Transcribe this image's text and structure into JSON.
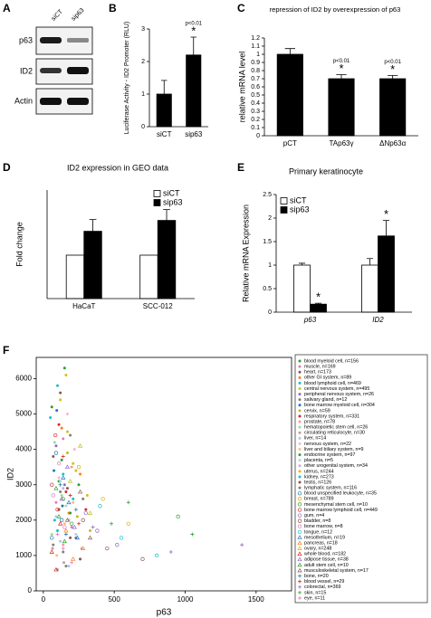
{
  "blot": {
    "panel_label": "A",
    "lanes": [
      "siCT",
      "sip63"
    ],
    "rows": [
      "p63",
      "ID2",
      "Actin"
    ]
  },
  "chart_data": [
    {
      "type": "bar",
      "panel_label": "B",
      "y_label": "Luciferase Activity - ID2 Promoter (RLU)",
      "categories": [
        "siCT",
        "sip63"
      ],
      "series": [
        {
          "color": "#000000",
          "values": [
            1.0,
            2.2
          ],
          "errors": [
            0.42,
            0.55
          ],
          "annotations": [
            null,
            "*"
          ],
          "notes": [
            null,
            "p<0.01"
          ]
        }
      ],
      "ylim": [
        0,
        3
      ],
      "yticks": [
        0,
        1,
        2,
        3
      ]
    },
    {
      "type": "bar",
      "panel_label": "C",
      "title": "repression of ID2 by overexpression of p63",
      "y_label": "relative mRNA level",
      "categories": [
        "pCT",
        "TAp63γ",
        "ΔNp63α"
      ],
      "series": [
        {
          "color": "#000000",
          "values": [
            1.0,
            0.7,
            0.7
          ],
          "errors": [
            0.07,
            0.05,
            0.04
          ],
          "annotations": [
            null,
            "*",
            "*"
          ],
          "notes": [
            null,
            "p<0.01",
            "p<0.01"
          ]
        }
      ],
      "ylim": [
        0,
        1.2
      ],
      "yticks": [
        0,
        0.1,
        0.2,
        0.3,
        0.4,
        0.5,
        0.6,
        0.7,
        0.8,
        0.9,
        1,
        1.1,
        1.2
      ]
    },
    {
      "type": "bar",
      "panel_label": "D",
      "title": "ID2 expression in GEO data",
      "y_label": "Fold change",
      "categories": [
        "HaCaT",
        "SCC-012"
      ],
      "series": [
        {
          "name": "siCT",
          "color": "#ffffff",
          "values": [
            1,
            1
          ]
        },
        {
          "name": "sip63",
          "color": "#000000",
          "values": [
            1.55,
            1.8
          ],
          "errors": [
            0.27,
            0.25
          ]
        }
      ],
      "ylim": [
        0,
        2.5
      ]
    },
    {
      "type": "bar",
      "panel_label": "E",
      "title": "Primary keratinocyte",
      "y_label": "Relative mRNA Expression",
      "categories": [
        "p63",
        "ID2"
      ],
      "category_style": "italic",
      "series": [
        {
          "name": "siCT",
          "color": "#ffffff",
          "values": [
            1.0,
            1.0
          ],
          "errors": [
            0.04,
            0.14
          ]
        },
        {
          "name": "sip63",
          "color": "#000000",
          "values": [
            0.17,
            1.62
          ],
          "errors": [
            0.02,
            0.33
          ],
          "annotations": [
            "*",
            "*"
          ]
        }
      ],
      "ylim": [
        0,
        2.5
      ],
      "yticks": [
        0,
        0.5,
        1,
        1.5,
        2,
        2.5
      ]
    },
    {
      "type": "scatter",
      "panel_label": "F",
      "x_label": "p63",
      "y_label": "ID2",
      "xlim": [
        -50,
        1750
      ],
      "xticks": [
        0,
        500,
        1000,
        1500
      ],
      "ylim": [
        0,
        6600
      ],
      "yticks": [
        0,
        1000,
        2000,
        3000,
        4000,
        5000,
        6000
      ],
      "series": [
        {
          "name": "blood myeloid cell, n=156",
          "color": "#2ca02c",
          "marker": "dot",
          "x": [
            60,
            110,
            150
          ],
          "y": [
            5200,
            3100,
            6300
          ]
        },
        {
          "name": "muscle, n=169",
          "color": "#e377c2",
          "marker": "dot",
          "x": [
            90,
            140,
            200
          ],
          "y": [
            2500,
            4300,
            1800
          ]
        },
        {
          "name": "heart, n=173",
          "color": "#8c564b",
          "marker": "dot",
          "x": [
            70,
            170,
            120
          ],
          "y": [
            3800,
            2900,
            5600
          ]
        },
        {
          "name": "other GI system, n=89",
          "color": "#ff7f0e",
          "marker": "dot",
          "x": [
            130,
            260,
            180
          ],
          "y": [
            4600,
            3300,
            2200
          ]
        },
        {
          "name": "blood lymphoid cell, n=469",
          "color": "#17becf",
          "marker": "dot",
          "x": [
            50,
            80,
            100
          ],
          "y": [
            4900,
            2000,
            5800
          ]
        },
        {
          "name": "central nervous system, n=495",
          "color": "#d4c400",
          "marker": "dot",
          "x": [
            120,
            160,
            210
          ],
          "y": [
            5400,
            6100,
            3600
          ]
        },
        {
          "name": "peripheral nervous system, n=26",
          "color": "#9467bd",
          "marker": "dot",
          "x": [
            150,
            230,
            90
          ],
          "y": [
            3000,
            1500,
            4100
          ]
        },
        {
          "name": "salivary gland, n=12",
          "color": "#7f7f7f",
          "marker": "dot",
          "x": [
            280,
            140,
            190
          ],
          "y": [
            2600,
            1100,
            4400
          ]
        },
        {
          "name": "bone marrow myeloid cell, n=304",
          "color": "#1f77b4",
          "marker": "dot",
          "x": [
            75,
            95,
            135
          ],
          "y": [
            3400,
            5100,
            2400
          ]
        },
        {
          "name": "cervix, n=59",
          "color": "#bcbd22",
          "marker": "dot",
          "x": [
            240,
            330,
            170
          ],
          "y": [
            2100,
            1700,
            3900
          ]
        },
        {
          "name": "respiratory system, n=331",
          "color": "#d62728",
          "marker": "dot",
          "x": [
            160,
            300,
            110
          ],
          "y": [
            2800,
            2300,
            4700
          ]
        },
        {
          "name": "prostate, n=78",
          "color": "#ff9896",
          "marker": "dot",
          "x": [
            200,
            140,
            260
          ],
          "y": [
            3500,
            1300,
            900
          ]
        },
        {
          "name": "hematopoietic stem cell, n=26",
          "color": "#98df8a",
          "marker": "dot",
          "x": [
            80,
            130,
            60
          ],
          "y": [
            4200,
            2700,
            1600
          ]
        },
        {
          "name": "circulating reticulocyte, n=30",
          "color": "#c49c94",
          "marker": "dot",
          "x": [
            100,
            65,
            145
          ],
          "y": [
            600,
            1200,
            800
          ]
        },
        {
          "name": "liver, n=14",
          "color": "#aec7e8",
          "marker": "dot",
          "x": [
            120,
            180,
            90
          ],
          "y": [
            1400,
            700,
            2100
          ]
        },
        {
          "name": "nervous system, n=22",
          "color": "#f7b6d2",
          "marker": "dot",
          "x": [
            170,
            220,
            110
          ],
          "y": [
            5000,
            4000,
            3200
          ]
        },
        {
          "name": "liver and biliary system, n=9",
          "color": "#ffbb78",
          "marker": "dot",
          "x": [
            150,
            95,
            210
          ],
          "y": [
            1900,
            1000,
            2500
          ]
        },
        {
          "name": "endocrine system, n=97",
          "color": "#2ca02c",
          "marker": "dot",
          "x": [
            190,
            250,
            130
          ],
          "y": [
            2200,
            3000,
            3700
          ]
        },
        {
          "name": "placenta, n=5",
          "color": "#9edae5",
          "marker": "dot",
          "x": [
            230,
            160,
            120
          ],
          "y": [
            1600,
            2400,
            3100
          ]
        },
        {
          "name": "other urogenital system, n=34",
          "color": "#c5b0d5",
          "marker": "dot",
          "x": [
            180,
            270,
            140
          ],
          "y": [
            2000,
            1200,
            2900
          ]
        },
        {
          "name": "uterus, n=244",
          "color": "#e6b800",
          "marker": "dot",
          "x": [
            170,
            310,
            230
          ],
          "y": [
            4500,
            2700,
            3400
          ]
        },
        {
          "name": "kidney, n=273",
          "color": "#17becf",
          "marker": "dot",
          "x": [
            140,
            210,
            100
          ],
          "y": [
            3300,
            2600,
            1700
          ]
        },
        {
          "name": "testis, n=126",
          "color": "#8c564b",
          "marker": "dot",
          "x": [
            110,
            190,
            260
          ],
          "y": [
            2300,
            1500,
            900
          ]
        },
        {
          "name": "lymphatic system, n=116",
          "color": "#7f7f7f",
          "marker": "dot",
          "x": [
            70,
            120,
            160
          ],
          "y": [
            1300,
            2800,
            700
          ]
        },
        {
          "name": "blood unspecified leukocyte, n=35",
          "color": "#1f77b4",
          "marker": "circle",
          "x": [
            90,
            130,
            60
          ],
          "y": [
            3900,
            2000,
            1500
          ]
        },
        {
          "name": "breast, n=789",
          "color": "#e6a800",
          "marker": "circle",
          "x": [
            250,
            420,
            600
          ],
          "y": [
            3500,
            2600,
            1900
          ]
        },
        {
          "name": "mesenchymal stem cell, n=10",
          "color": "#2ca02c",
          "marker": "circle",
          "x": [
            200,
            140,
            950
          ],
          "y": [
            1900,
            2600,
            2100
          ]
        },
        {
          "name": "bone marrow lymphoid cell, n=449",
          "color": "#d62728",
          "marker": "circle",
          "x": [
            60,
            100,
            85
          ],
          "y": [
            3000,
            2300,
            4400
          ]
        },
        {
          "name": "gum, n=4",
          "color": "#9467bd",
          "marker": "circle",
          "x": [
            380,
            520,
            300
          ],
          "y": [
            1700,
            1300,
            2200
          ]
        },
        {
          "name": "bladder, n=8",
          "color": "#8c564b",
          "marker": "circle",
          "x": [
            450,
            280,
            700
          ],
          "y": [
            1200,
            2000,
            900
          ]
        },
        {
          "name": "bone marrow, n=8",
          "color": "#e377c2",
          "marker": "circle",
          "x": [
            70,
            110,
            150
          ],
          "y": [
            2700,
            3600,
            1800
          ]
        },
        {
          "name": "tongue, n=12",
          "color": "#17becf",
          "marker": "circle",
          "x": [
            550,
            800,
            400
          ],
          "y": [
            1500,
            1000,
            2400
          ]
        },
        {
          "name": "mesothelium, n=19",
          "color": "#1f77b4",
          "marker": "triangle",
          "x": [
            180,
            240,
            140
          ],
          "y": [
            2500,
            1500,
            3200
          ]
        },
        {
          "name": "pancreas, n=18",
          "color": "#ff7f0e",
          "marker": "triangle",
          "x": [
            210,
            160,
            280
          ],
          "y": [
            900,
            1700,
            1200
          ]
        },
        {
          "name": "ovary, n=248",
          "color": "#bcbd22",
          "marker": "triangle",
          "x": [
            190,
            330,
            260
          ],
          "y": [
            3100,
            2200,
            4100
          ]
        },
        {
          "name": "whole blood, n=182",
          "color": "#d62728",
          "marker": "triangle",
          "x": [
            60,
            90,
            120
          ],
          "y": [
            1100,
            600,
            1900
          ]
        },
        {
          "name": "adipose tissue, n=38",
          "color": "#9467bd",
          "marker": "triangle",
          "x": [
            130,
            220,
            170
          ],
          "y": [
            2600,
            1800,
            3500
          ]
        },
        {
          "name": "adult stem cell, n=10",
          "color": "#2ca02c",
          "marker": "triangle",
          "x": [
            150,
            110,
            90
          ],
          "y": [
            1400,
            2100,
            2900
          ]
        },
        {
          "name": "musculoskeletal system, n=17",
          "color": "#8c564b",
          "marker": "triangle",
          "x": [
            260,
            170,
            330
          ],
          "y": [
            2800,
            2000,
            1500
          ]
        },
        {
          "name": "bone, n=20",
          "color": "#1f77b4",
          "marker": "plus",
          "x": [
            160,
            230,
            120
          ],
          "y": [
            1600,
            2300,
            3000
          ]
        },
        {
          "name": "blood vessel, n=29",
          "color": "#d62728",
          "marker": "plus",
          "x": [
            190,
            250,
            140
          ],
          "y": [
            2700,
            1900,
            3800
          ]
        },
        {
          "name": "colorectal, n=369",
          "color": "#9467bd",
          "marker": "plus",
          "x": [
            350,
            900,
            1400
          ],
          "y": [
            1800,
            1100,
            1300
          ]
        },
        {
          "name": "skin, n=15",
          "color": "#2ca02c",
          "marker": "plus",
          "x": [
            600,
            1050,
            480
          ],
          "y": [
            2500,
            1600,
            1900
          ]
        },
        {
          "name": "eye, n=11",
          "color": "#e377c2",
          "marker": "plus",
          "x": [
            140,
            200,
            100
          ],
          "y": [
            1200,
            800,
            1600
          ]
        }
      ]
    }
  ]
}
